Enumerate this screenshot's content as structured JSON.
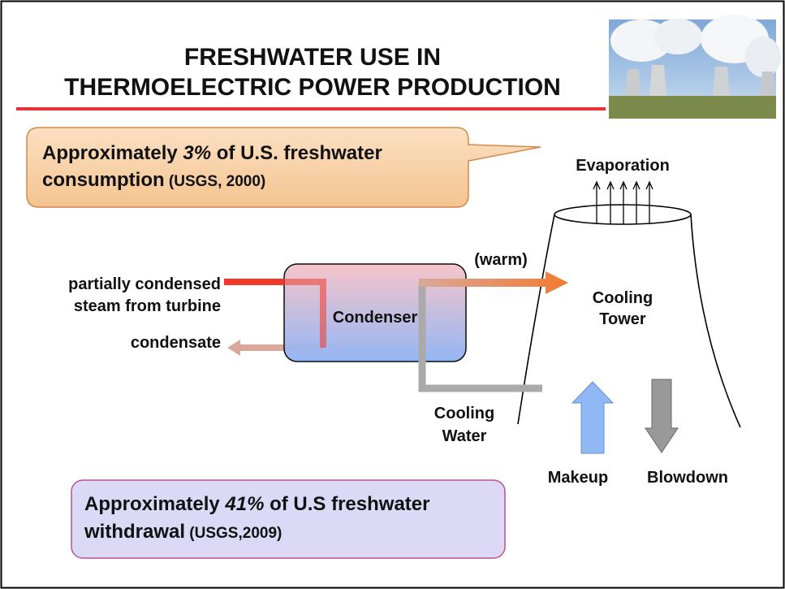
{
  "title": {
    "line1": "FRESHWATER USE IN",
    "line2": "THERMOELECTRIC POWER PRODUCTION"
  },
  "callout_consumption": {
    "prefix": "Approximately ",
    "highlight": "3%",
    "suffix": " of U.S. freshwater",
    "line2": "consumption",
    "source": " (USGS, 2000)"
  },
  "callout_withdrawal": {
    "prefix": "Approximately ",
    "highlight": "41%",
    "suffix": " of U.S freshwater",
    "line2": "withdrawal",
    "source": " (USGS,2009)"
  },
  "labels": {
    "evaporation": "Evaporation",
    "warm": "(warm)",
    "steam_line1": "partially condensed",
    "steam_line2": "steam from turbine",
    "condensate": "condensate",
    "condenser": "Condenser",
    "cooling_tower_line1": "Cooling",
    "cooling_tower_line2": "Tower",
    "cooling_water_line1": "Cooling",
    "cooling_water_line2": "Water",
    "makeup": "Makeup",
    "blowdown": "Blowdown"
  }
}
